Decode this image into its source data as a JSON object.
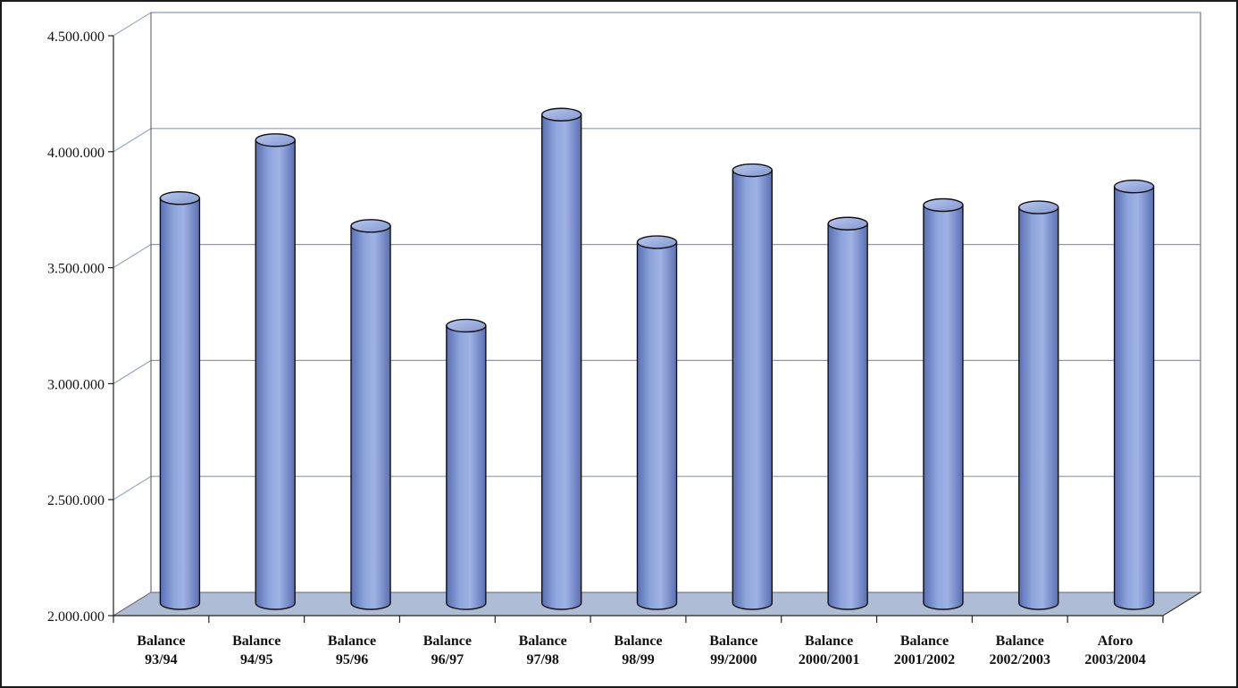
{
  "chart_data": {
    "type": "bar",
    "title": "",
    "xlabel": "",
    "ylabel": "",
    "ylim": [
      2000000,
      4500000
    ],
    "yticks": [
      2000000,
      2500000,
      3000000,
      3500000,
      4000000,
      4500000
    ],
    "ytick_labels": [
      "2.000.000",
      "2.500.000",
      "3.000.000",
      "3.500.000",
      "4.000.000",
      "4.500.000"
    ],
    "grid": true,
    "style": "3d-cylinder",
    "colors": {
      "bar": "#8fa6dc",
      "bar_dark": "#5a6fb4",
      "floor": "#aebcd6",
      "grid": "#8a9ab5"
    },
    "categories": [
      {
        "line1": "Balance",
        "line2": "93/94"
      },
      {
        "line1": "Balance",
        "line2": "94/95"
      },
      {
        "line1": "Balance",
        "line2": "95/96"
      },
      {
        "line1": "Balance",
        "line2": "96/97"
      },
      {
        "line1": "Balance",
        "line2": "97/98"
      },
      {
        "line1": "Balance",
        "line2": "98/99"
      },
      {
        "line1": "Balance",
        "line2": "99/2000"
      },
      {
        "line1": "Balance",
        "line2": "2000/2001"
      },
      {
        "line1": "Balance",
        "line2": "2001/2002"
      },
      {
        "line1": "Balance",
        "line2": "2002/2003"
      },
      {
        "line1": "Aforo",
        "line2": "2003/2004"
      }
    ],
    "values": [
      3750000,
      4000000,
      3630000,
      3200000,
      4110000,
      3560000,
      3870000,
      3640000,
      3720000,
      3710000,
      3800000
    ]
  }
}
